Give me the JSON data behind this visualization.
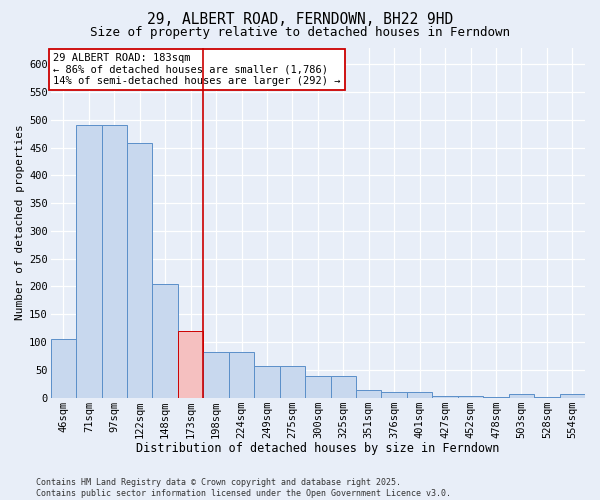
{
  "title": "29, ALBERT ROAD, FERNDOWN, BH22 9HD",
  "subtitle": "Size of property relative to detached houses in Ferndown",
  "xlabel": "Distribution of detached houses by size in Ferndown",
  "ylabel": "Number of detached properties",
  "footer": "Contains HM Land Registry data © Crown copyright and database right 2025.\nContains public sector information licensed under the Open Government Licence v3.0.",
  "categories": [
    "46sqm",
    "71sqm",
    "97sqm",
    "122sqm",
    "148sqm",
    "173sqm",
    "198sqm",
    "224sqm",
    "249sqm",
    "275sqm",
    "300sqm",
    "325sqm",
    "351sqm",
    "376sqm",
    "401sqm",
    "427sqm",
    "452sqm",
    "478sqm",
    "503sqm",
    "528sqm",
    "554sqm"
  ],
  "values": [
    105,
    490,
    490,
    458,
    205,
    120,
    82,
    82,
    57,
    57,
    38,
    38,
    14,
    10,
    10,
    2,
    2,
    1,
    6,
    1,
    6
  ],
  "bar_color": "#c8d8ee",
  "bar_edge_color": "#5b8fc9",
  "highlight_bar_index": 5,
  "highlight_bar_color": "#f5c0c0",
  "highlight_bar_edge_color": "#cc0000",
  "vline_color": "#cc0000",
  "annotation_title": "29 ALBERT ROAD: 183sqm",
  "annotation_line1": "← 86% of detached houses are smaller (1,786)",
  "annotation_line2": "14% of semi-detached houses are larger (292) →",
  "ylim": [
    0,
    630
  ],
  "yticks": [
    0,
    50,
    100,
    150,
    200,
    250,
    300,
    350,
    400,
    450,
    500,
    550,
    600
  ],
  "bg_color": "#e8eef8",
  "grid_color": "#ffffff",
  "title_fontsize": 10.5,
  "subtitle_fontsize": 9,
  "xlabel_fontsize": 8.5,
  "ylabel_fontsize": 8,
  "tick_fontsize": 7.5,
  "annotation_fontsize": 7.5,
  "footer_fontsize": 6.0
}
